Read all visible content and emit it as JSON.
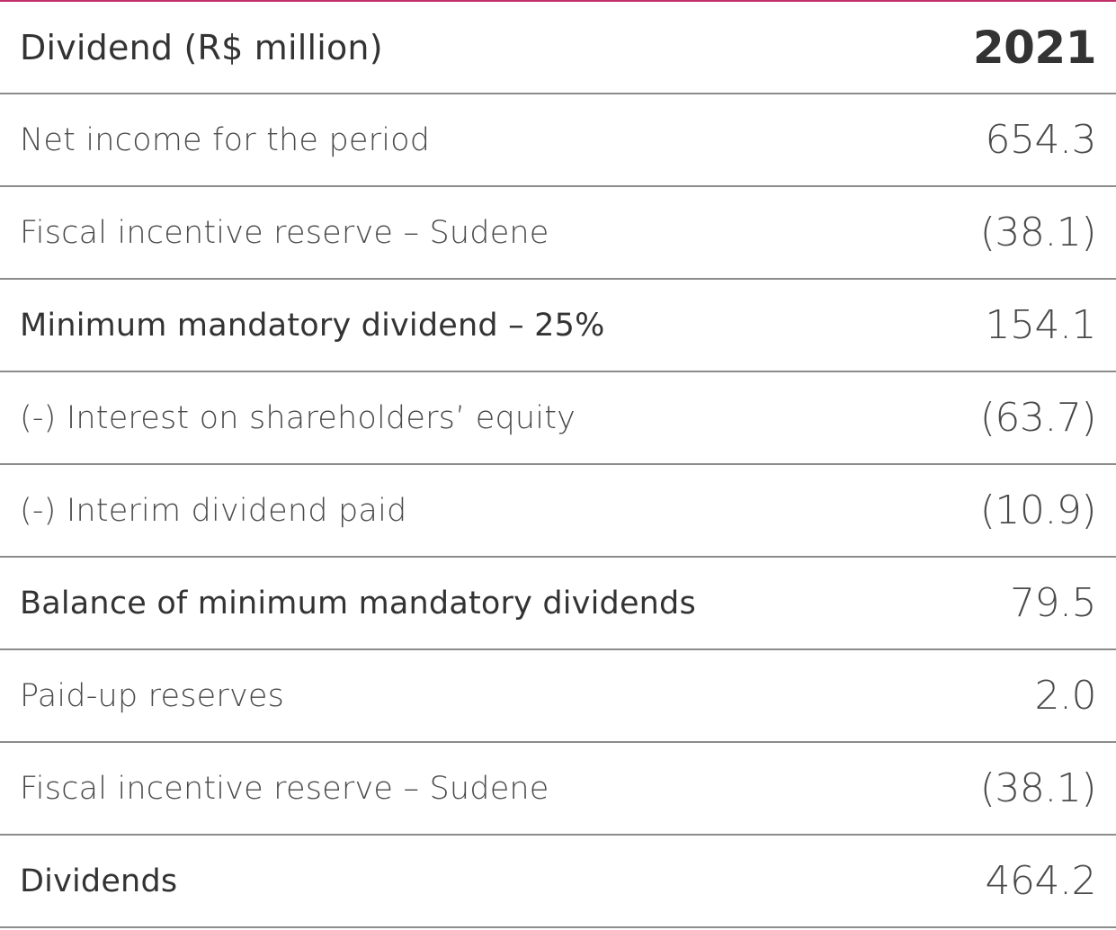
{
  "table": {
    "header": {
      "label": "Dividend (R$ million)",
      "year": "2021"
    },
    "rows": [
      {
        "label": "Net income for the period",
        "value": "654.3"
      },
      {
        "label": "Fiscal incentive reserve – Sudene",
        "value": "(38.1)"
      },
      {
        "label": "Minimum mandatory dividend – 25%",
        "value": "154.1"
      },
      {
        "label": "(-) Interest on shareholders’ equity",
        "value": "(63.7)"
      },
      {
        "label": "(-) Interim dividend paid",
        "value": "(10.9)"
      },
      {
        "label": "Balance of minimum mandatory dividends",
        "value": "79.5"
      },
      {
        "label": "Paid-up reserves",
        "value": "2.0"
      },
      {
        "label": "Fiscal incentive reserve – Sudene",
        "value": "(38.1)"
      },
      {
        "label": "Dividends",
        "value": "464.2"
      }
    ]
  },
  "colors": {
    "top_rule": "#c0306a",
    "row_rule": "#8c8c8c",
    "text": "#3a3a3a"
  }
}
